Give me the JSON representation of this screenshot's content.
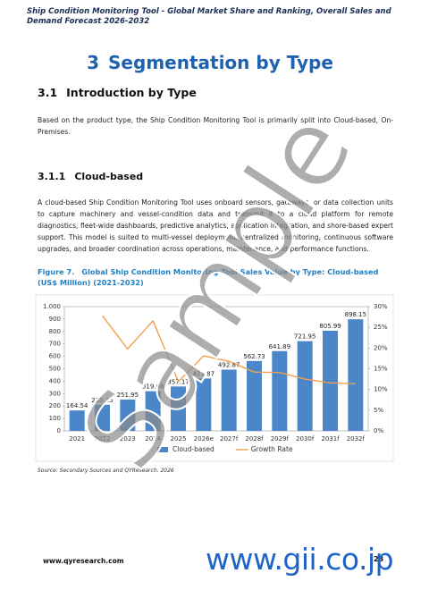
{
  "header": {
    "title": "Ship Condition Monitoring Tool - Global Market Share and Ranking, Overall Sales and Demand Forecast 2026-2032"
  },
  "chapter": {
    "number": "3",
    "title": "Segmentation by Type"
  },
  "section": {
    "number": "3.1",
    "title": "Introduction by Type",
    "text": "Based on the product type, the Ship Condition Monitoring Tool is primarily split into Cloud-based, On-Premises."
  },
  "subsection": {
    "number": "3.1.1",
    "title": "Cloud-based",
    "text": "A cloud-based Ship Condition Monitoring Tool uses onboard sensors, gateways, or data collection units to capture machinery and vessel-condition data and transmit it to a cloud platform for remote diagnostics, fleet-wide dashboards, predictive analytics, application integration, and shore-based expert support. This model is suited to multi-vessel deployment, centralized monitoring, continuous software upgrades, and broader coordination across operations, maintenance, and performance functions."
  },
  "figure": {
    "number": "Figure 7.",
    "caption": "Global Ship Condition Monitoring Tool Sales Value by Type: Cloud-based (US$ Million) (2021-2032)"
  },
  "chart_data": {
    "type": "bar",
    "categories": [
      "2021",
      "2022",
      "2023",
      "2024",
      "2025",
      "2026e",
      "2027f",
      "2028f",
      "2029f",
      "2030f",
      "2031f",
      "2032f"
    ],
    "series": [
      {
        "name": "Cloud-based",
        "type": "bar",
        "color": "#4a86c8",
        "values": [
          164.54,
          210.25,
          251.95,
          319.08,
          357.17,
          421.87,
          492.87,
          562.73,
          641.89,
          721.95,
          805.99,
          898.15
        ]
      },
      {
        "name": "Growth Rate",
        "type": "line",
        "axis": "y2",
        "color": "#f0a050",
        "values": [
          null,
          27.8,
          19.8,
          26.6,
          11.9,
          18.1,
          16.8,
          14.2,
          14.1,
          12.5,
          11.6,
          11.4
        ]
      }
    ],
    "ylim": [
      0,
      1000
    ],
    "yticks": [
      0,
      100,
      200,
      300,
      400,
      500,
      600,
      700,
      800,
      900,
      {
        "value": 1000,
        "label": "1.000"
      }
    ],
    "y2lim": [
      0,
      30
    ],
    "y2ticks": [
      {
        "value": 0,
        "label": "0%"
      },
      {
        "value": 5,
        "label": "5%"
      },
      {
        "value": 10,
        "label": "10%"
      },
      {
        "value": 15,
        "label": "15%"
      },
      {
        "value": 20,
        "label": "20%"
      },
      {
        "value": 25,
        "label": "25%"
      },
      {
        "value": 30,
        "label": "30%"
      }
    ],
    "grid": false,
    "legend": "bottom"
  },
  "source": "Source: Secondary Sources and QYResearch, 2026",
  "footer": {
    "website": "www.qyresearch.com",
    "page": "23"
  },
  "watermark": {
    "sample": "Sample",
    "site": "www.gii.co.jp"
  }
}
